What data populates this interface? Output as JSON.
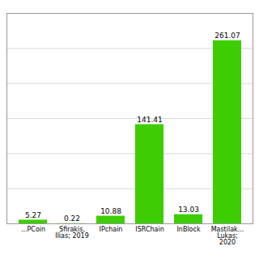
{
  "chart_data": {
    "type": "bar",
    "categories": [
      "...PCoin",
      "Sfirakis,\nIlias; 2019",
      "IPchain",
      "ISRChain",
      "InBlock",
      "Mastilak...\nLukas;\n2020"
    ],
    "values": [
      5.27,
      0.22,
      10.88,
      141.41,
      13.03,
      261.07
    ],
    "color": "#3dcd00",
    "ylim": [
      0,
      300
    ],
    "yticks": [
      0,
      50,
      100,
      150,
      200,
      250
    ],
    "grid": true,
    "data_labels": true,
    "tick_labels": "x"
  }
}
